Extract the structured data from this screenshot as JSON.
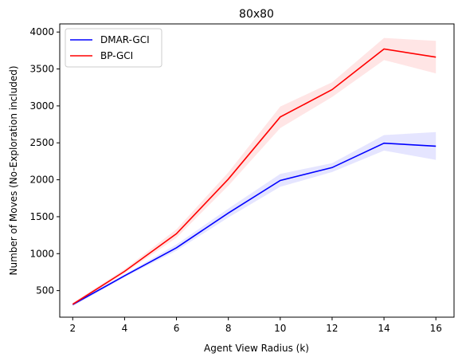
{
  "chart_data": {
    "type": "line",
    "title": "80x80",
    "xlabel": "Agent View Radius (k)",
    "ylabel": "Number of Moves (No-Exploration included)",
    "x": [
      2,
      4,
      6,
      8,
      10,
      12,
      14,
      16
    ],
    "xlim": [
      1.5,
      16.7
    ],
    "ylim": [
      140,
      4110
    ],
    "xticks": [
      2,
      4,
      6,
      8,
      10,
      12,
      14,
      16
    ],
    "yticks": [
      500,
      1000,
      1500,
      2000,
      2500,
      3000,
      3500,
      4000
    ],
    "grid": false,
    "legend": "top-left",
    "series": [
      {
        "name": "DMAR-GCI",
        "color": "#0000ff",
        "values": [
          310,
          700,
          1080,
          1550,
          1990,
          2165,
          2495,
          2455
        ],
        "lower": [
          290,
          680,
          1040,
          1490,
          1905,
          2105,
          2395,
          2270
        ],
        "upper": [
          330,
          720,
          1125,
          1610,
          2080,
          2225,
          2605,
          2645
        ]
      },
      {
        "name": "BP-GCI",
        "color": "#ff0000",
        "values": [
          315,
          760,
          1270,
          2010,
          2850,
          3220,
          3770,
          3660
        ],
        "lower": [
          300,
          735,
          1215,
          1920,
          2700,
          3120,
          3620,
          3440
        ],
        "upper": [
          335,
          790,
          1330,
          2100,
          2990,
          3320,
          3920,
          3880
        ]
      }
    ]
  }
}
